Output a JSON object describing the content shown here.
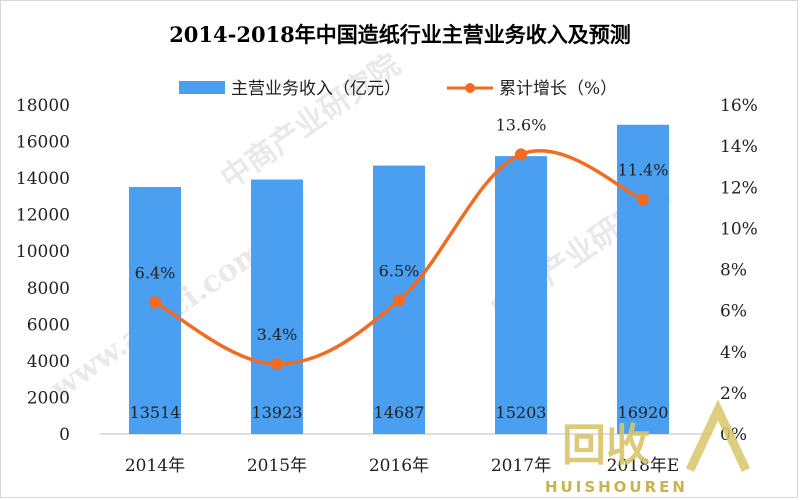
{
  "chart_data": {
    "type": "bar+line",
    "title": "2014-2018年中国造纸行业主营业务收入及预测",
    "categories": [
      "2014年",
      "2015年",
      "2016年",
      "2017年",
      "2018年E"
    ],
    "series": [
      {
        "name": "主营业务收入（亿元）",
        "type": "bar",
        "axis": "left",
        "color": "#4a9ff0",
        "values": [
          13514,
          13923,
          14687,
          15203,
          16920
        ],
        "labels": [
          "13514",
          "13923",
          "14687",
          "15203",
          "16920"
        ]
      },
      {
        "name": "累计增长（%）",
        "type": "line",
        "axis": "right",
        "color": "#f26b21",
        "values": [
          6.4,
          3.4,
          6.5,
          13.6,
          11.4
        ],
        "labels": [
          "6.4%",
          "3.4%",
          "6.5%",
          "13.6%",
          "11.4%"
        ]
      }
    ],
    "y_left": {
      "min": 0,
      "max": 18000,
      "ticks": [
        "0",
        "2000",
        "4000",
        "6000",
        "8000",
        "10000",
        "12000",
        "14000",
        "16000",
        "18000"
      ]
    },
    "y_right": {
      "min": 0,
      "max": 16,
      "ticks": [
        "0%",
        "2%",
        "4%",
        "6%",
        "8%",
        "10%",
        "12%",
        "14%",
        "16%"
      ]
    },
    "legend_position": "top",
    "grid": false
  },
  "watermark": {
    "site": "中商产业研究院",
    "domain": "www.askci.com",
    "logo_text": "回收",
    "logo_sub": "HUISHOUREN"
  }
}
